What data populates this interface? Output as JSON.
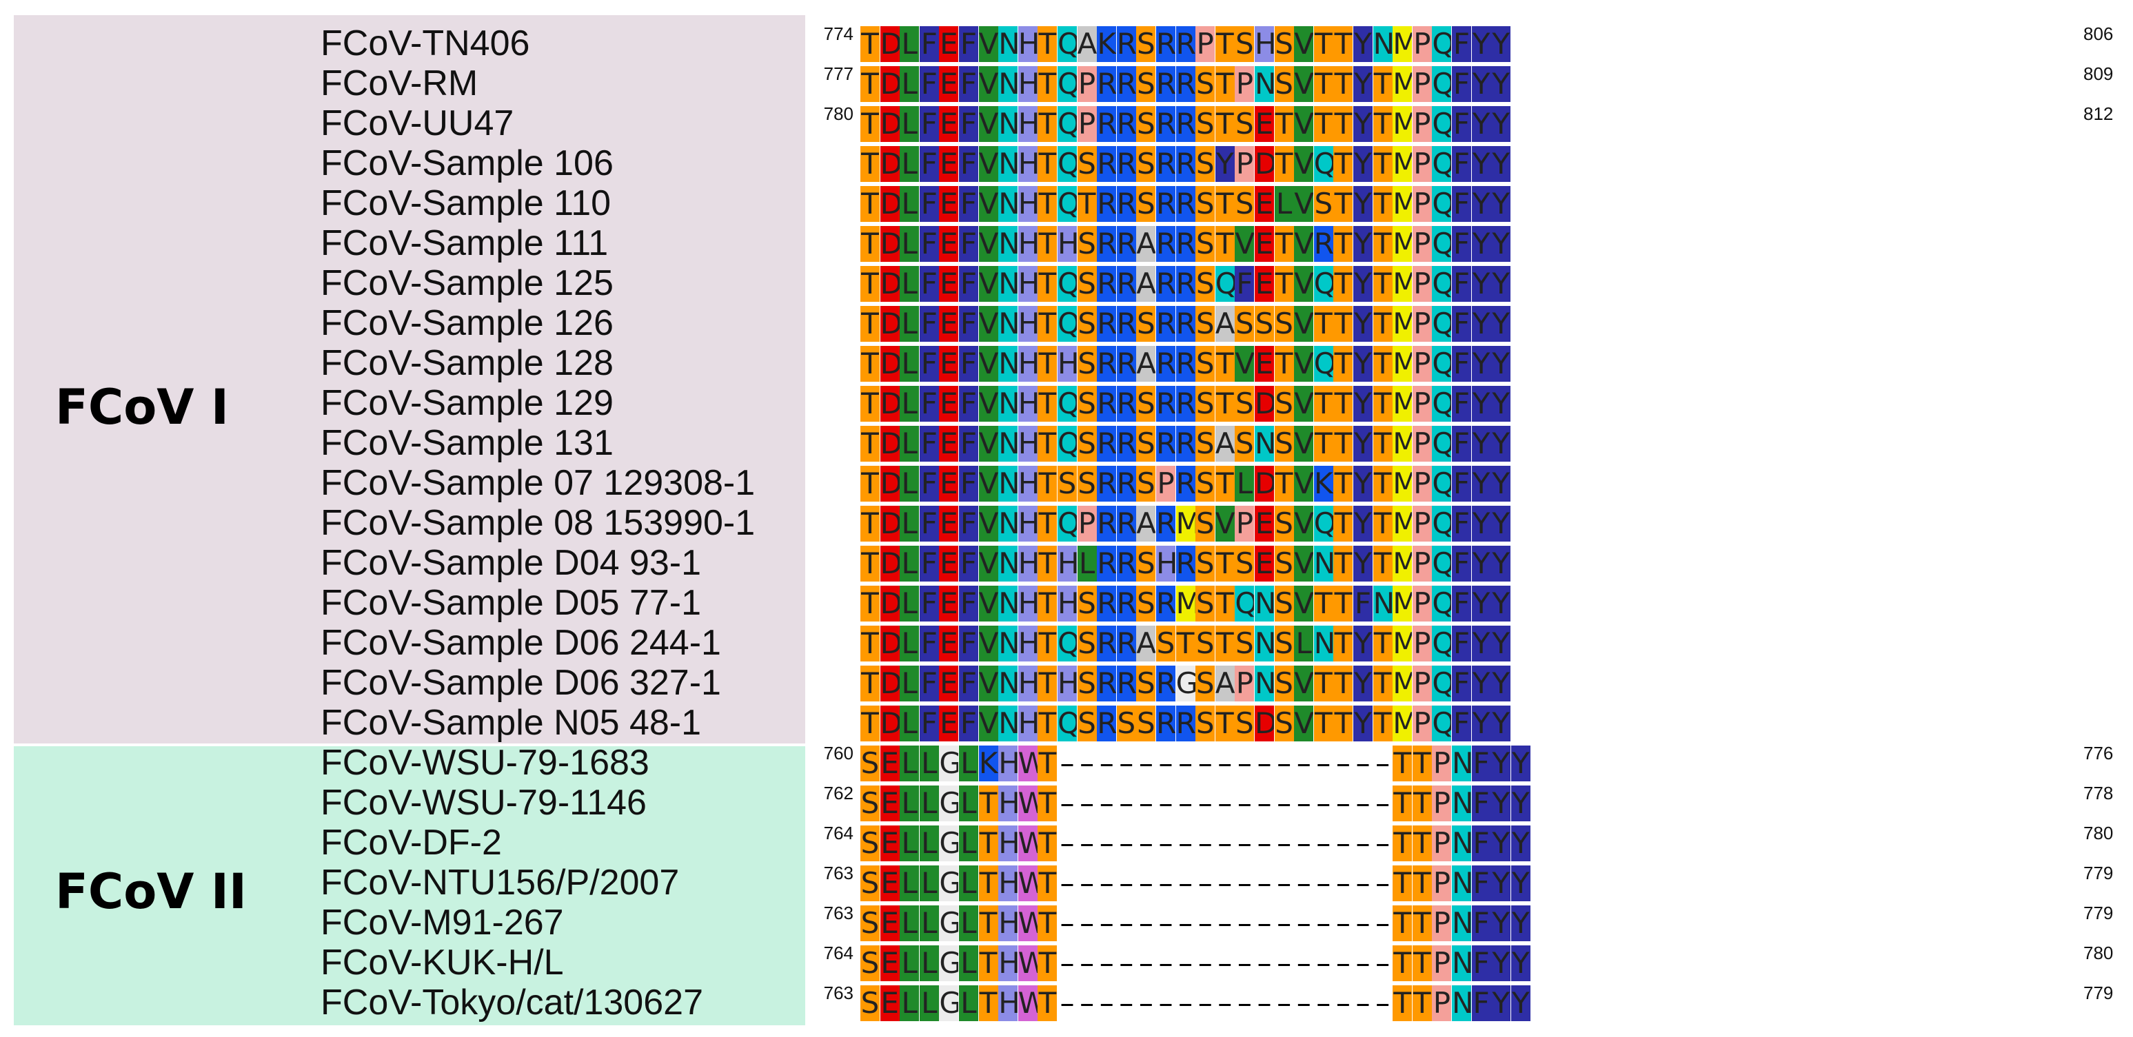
{
  "colors": {
    "group_1_background": "#e7dde4",
    "group_2_background": "#c8f2e0",
    "residues": {
      "T": "#ff9900",
      "S": "#ff9900",
      "D": "#e60000",
      "E": "#e60000",
      "L": "#1f8a2a",
      "V": "#1f8a2a",
      "I": "#1f8a2a",
      "F": "#2e2ea6",
      "Y": "#2e2ea6",
      "W": "#d463d4",
      "N": "#00c8c8",
      "Q": "#00c8c8",
      "H": "#8c8ce6",
      "K": "#1155ee",
      "R": "#1155ee",
      "P": "#f4a09a",
      "A": "#c8c8c8",
      "G": "#ececec",
      "M": "#f0f000",
      "C": "#e6e600"
    }
  },
  "groups": [
    {
      "label": "FCoV I"
    },
    {
      "label": "FCoV II"
    }
  ],
  "sequences": [
    {
      "name": "FCoV-TN406",
      "group": 0,
      "start": "774",
      "end": "806",
      "seq": "TDLFEFVNHTQAKRSRRPTSHSVTTYNMPQFYY"
    },
    {
      "name": "FCoV-RM",
      "group": 0,
      "start": "777",
      "end": "809",
      "seq": "TDLFEFVNHTQPRRSRRSTPNSVTTYTMPQFYY"
    },
    {
      "name": "FCoV-UU47",
      "group": 0,
      "start": "780",
      "end": "812",
      "seq": "TDLFEFVNHTQPRRSRRSTSETVTTYTMPQFYY"
    },
    {
      "name": "FCoV-Sample 106",
      "group": 0,
      "start": "",
      "end": "",
      "seq": "TDLFEFVNHTQSRRSRRSYPDTVQTYTMPQFYY"
    },
    {
      "name": "FCoV-Sample 110",
      "group": 0,
      "start": "",
      "end": "",
      "seq": "TDLFEFVNHTQTRRSRRSTSELVSTYTMPQFYY"
    },
    {
      "name": "FCoV-Sample 111",
      "group": 0,
      "start": "",
      "end": "",
      "seq": "TDLFEFVNHTHSRRARRSTVETVRTYTMPQFYY"
    },
    {
      "name": "FCoV-Sample 125",
      "group": 0,
      "start": "",
      "end": "",
      "seq": "TDLFEFVNHTQSRRARRSQFETVQTYTMPQFYY"
    },
    {
      "name": "FCoV-Sample 126",
      "group": 0,
      "start": "",
      "end": "",
      "seq": "TDLFEFVNHTQSRRSRRSASSSVTTYTMPQFYY"
    },
    {
      "name": "FCoV-Sample 128",
      "group": 0,
      "start": "",
      "end": "",
      "seq": "TDLFEFVNHTHSRRARRSTVETVQTYTMPQFYY"
    },
    {
      "name": "FCoV-Sample 129",
      "group": 0,
      "start": "",
      "end": "",
      "seq": "TDLFEFVNHTQSRRSRRSTSDSVTTYTMPQFYY"
    },
    {
      "name": "FCoV-Sample 131",
      "group": 0,
      "start": "",
      "end": "",
      "seq": "TDLFEFVNHTQSRRSRRSASNSVTTYTMPQFYY"
    },
    {
      "name": "FCoV-Sample 07 129308-1",
      "group": 0,
      "start": "",
      "end": "",
      "seq": "TDLFEFVNHTSSRRSPRSTLDTVKTYTMPQFYY"
    },
    {
      "name": "FCoV-Sample 08 153990-1",
      "group": 0,
      "start": "",
      "end": "",
      "seq": "TDLFEFVNHTQPRRARMSVPESVQTYTMPQFYY"
    },
    {
      "name": "FCoV-Sample D04 93-1",
      "group": 0,
      "start": "",
      "end": "",
      "seq": "TDLFEFVNHTHLRRSHRSTSESVNTYTMPQFYY"
    },
    {
      "name": "FCoV-Sample D05 77-1",
      "group": 0,
      "start": "",
      "end": "",
      "seq": "TDLFEFVNHTHSRRSRMSTQNSVTTFNMPQFYY"
    },
    {
      "name": "FCoV-Sample D06 244-1",
      "group": 0,
      "start": "",
      "end": "",
      "seq": "TDLFEFVNHTQSRRASTSTSNSLNTYTMPQFYY"
    },
    {
      "name": "FCoV-Sample D06 327-1",
      "group": 0,
      "start": "",
      "end": "",
      "seq": "TDLFEFVNHTHSRRSRGSAPNSVTTYTMPQFYY"
    },
    {
      "name": "FCoV-Sample N05 48-1",
      "group": 0,
      "start": "",
      "end": "",
      "seq": "TDLFEFVNHTQSRSSRRSTSDSVTTYTMPQFYY"
    },
    {
      "name": "FCoV-WSU-79-1683",
      "group": 1,
      "start": "760",
      "end": "776",
      "seq": "SELLGLKHWT-----------------TTPNFYY"
    },
    {
      "name": "FCoV-WSU-79-1146",
      "group": 1,
      "start": "762",
      "end": "778",
      "seq": "SELLGLTHWT-----------------TTPNFYY"
    },
    {
      "name": "FCoV-DF-2",
      "group": 1,
      "start": "764",
      "end": "780",
      "seq": "SELLGLTHWT-----------------TTPNFYY"
    },
    {
      "name": "FCoV-NTU156/P/2007",
      "group": 1,
      "start": "763",
      "end": "779",
      "seq": "SELLGLTHWT-----------------TTPNFYY"
    },
    {
      "name": "FCoV-M91-267",
      "group": 1,
      "start": "763",
      "end": "779",
      "seq": "SELLGLTHWT-----------------TTPNFYY"
    },
    {
      "name": "FCoV-KUK-H/L",
      "group": 1,
      "start": "764",
      "end": "780",
      "seq": "SELLGLTHWT-----------------TTPNFYY"
    },
    {
      "name": "FCoV-Tokyo/cat/130627",
      "group": 1,
      "start": "763",
      "end": "779",
      "seq": "SELLGLTHWT-----------------TTPNFYY"
    }
  ]
}
